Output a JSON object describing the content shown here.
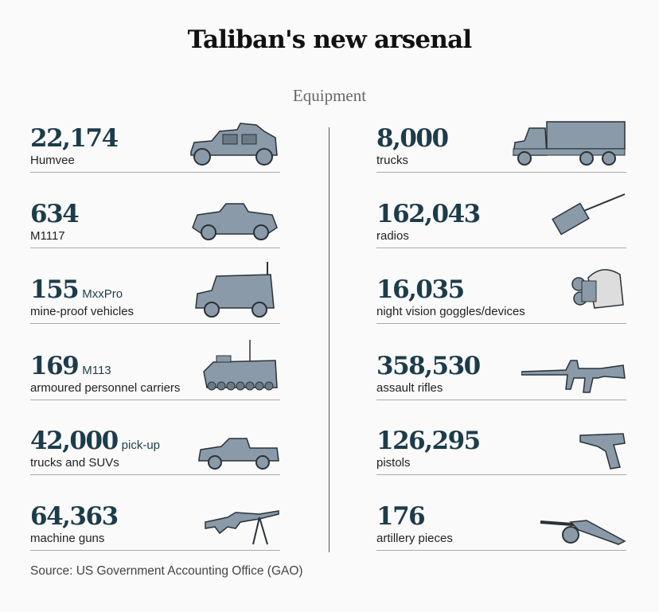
{
  "title": "Taliban's new arsenal",
  "subtitle": "Equipment",
  "source": "Source: US Government Accounting Office (GAO)",
  "colors": {
    "number": "#1d3c4a",
    "icon_fill": "#8a9aa8",
    "icon_stroke": "#2a3238"
  },
  "left": [
    {
      "value": "22,174",
      "inline": "",
      "label": "Humvee",
      "icon": "humvee-icon"
    },
    {
      "value": "634",
      "inline": "",
      "label": "M1117",
      "icon": "armored-car-icon"
    },
    {
      "value": "155",
      "inline": "MxxPro",
      "label": "mine-proof vehicles",
      "icon": "mrap-icon"
    },
    {
      "value": "169",
      "inline": "M113",
      "label": "armoured personnel carriers",
      "icon": "apc-icon"
    },
    {
      "value": "42,000",
      "inline": "pick-up",
      "label": "trucks and SUVs",
      "icon": "pickup-icon"
    },
    {
      "value": "64,363",
      "inline": "",
      "label": "machine guns",
      "icon": "machine-gun-icon"
    }
  ],
  "right": [
    {
      "value": "8,000",
      "inline": "",
      "label": "trucks",
      "icon": "truck-icon"
    },
    {
      "value": "162,043",
      "inline": "",
      "label": "radios",
      "icon": "radio-icon"
    },
    {
      "value": "16,035",
      "inline": "",
      "label": "night vision goggles/devices",
      "icon": "night-vision-icon"
    },
    {
      "value": "358,530",
      "inline": "",
      "label": "assault rifles",
      "icon": "rifle-icon"
    },
    {
      "value": "126,295",
      "inline": "",
      "label": "pistols",
      "icon": "pistol-icon"
    },
    {
      "value": "176",
      "inline": "",
      "label": "artillery pieces",
      "icon": "artillery-icon"
    }
  ]
}
